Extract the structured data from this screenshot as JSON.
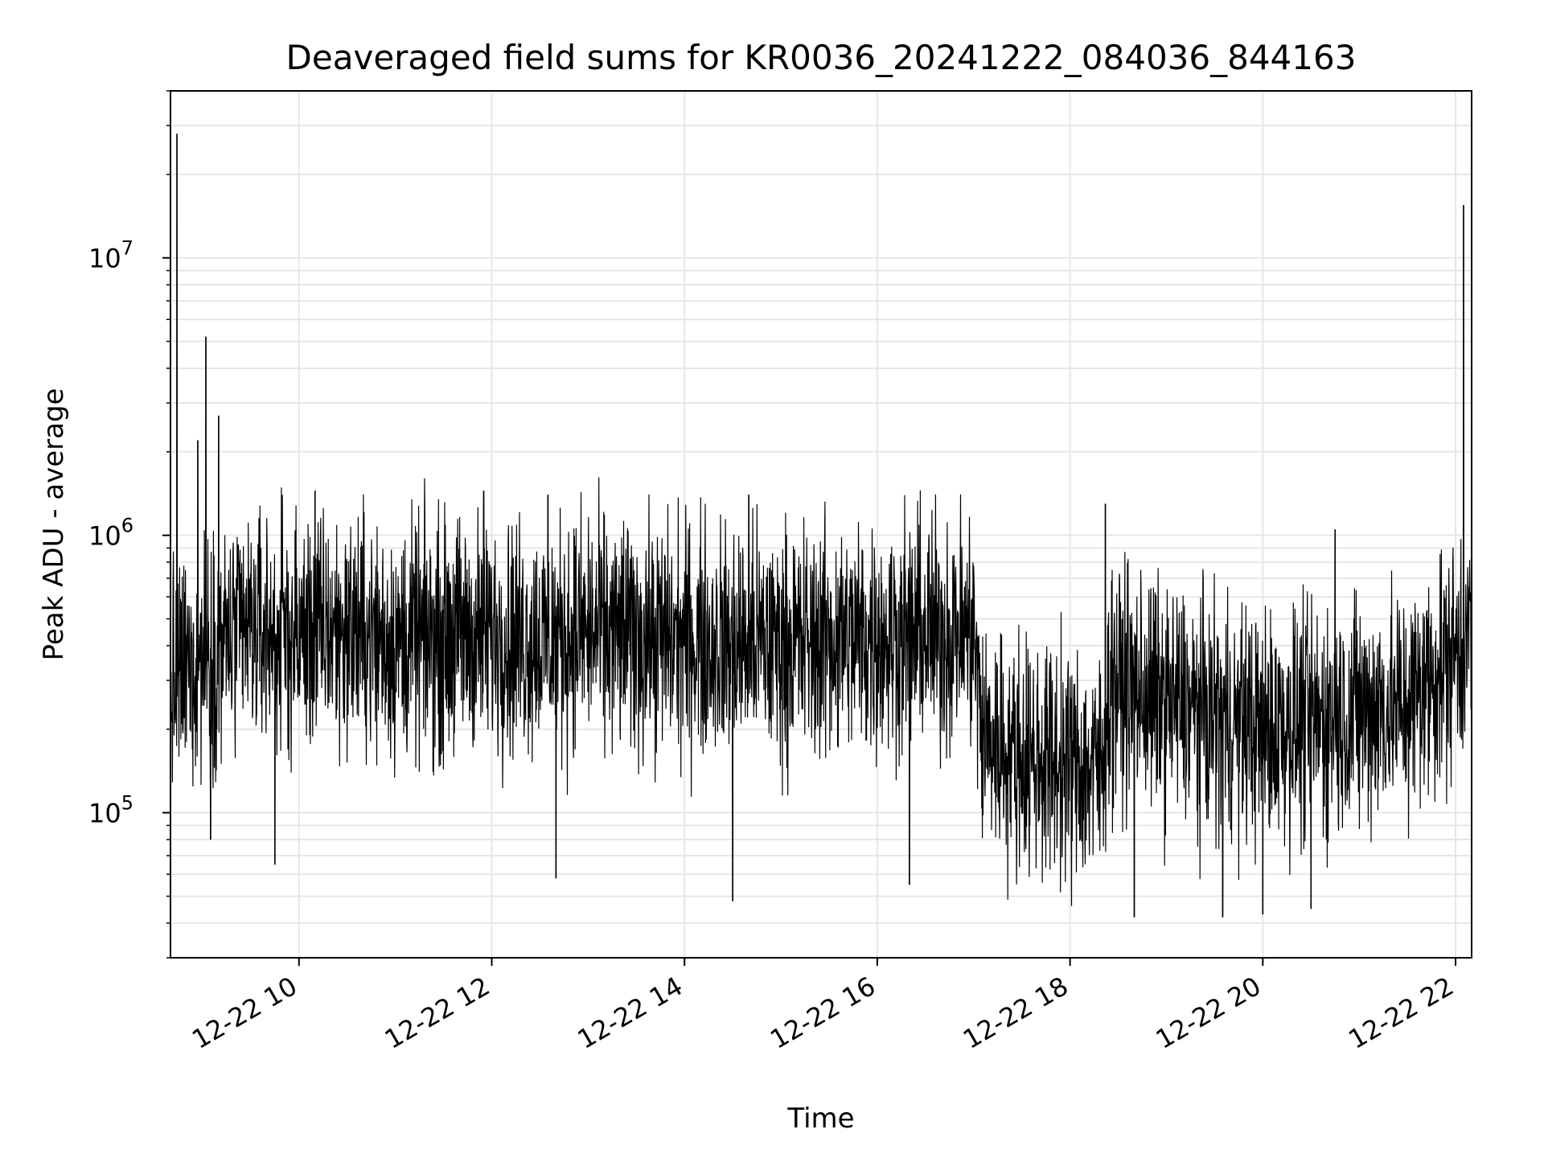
{
  "chart_data": {
    "type": "line",
    "title": "Deaveraged field sums for KR0036_20241222_084036_844163",
    "xlabel": "Time",
    "ylabel": "Peak ADU - average",
    "x_axis": {
      "kind": "datetime",
      "start": "2024-12-22T08:40",
      "end": "2024-12-22T22:10",
      "ticks": [
        "2024-12-22T10:00",
        "2024-12-22T12:00",
        "2024-12-22T14:00",
        "2024-12-22T16:00",
        "2024-12-22T18:00",
        "2024-12-22T20:00",
        "2024-12-22T22:00"
      ],
      "tick_labels": [
        "12-22 10",
        "12-22 12",
        "12-22 14",
        "12-22 16",
        "12-22 18",
        "12-22 20",
        "12-22 22"
      ],
      "tick_label_rotation": 30
    },
    "y_axis": {
      "scale": "log",
      "ylim": [
        30000,
        40000000
      ],
      "major_ticks": [
        100000,
        1000000,
        10000000
      ],
      "tick_labels": [
        {
          "base": "10",
          "exp": "5"
        },
        {
          "base": "10",
          "exp": "6"
        },
        {
          "base": "10",
          "exp": "7"
        }
      ]
    },
    "grid": true,
    "legend": "none",
    "line_color": "#000000",
    "grid_color": "#e6e6e6",
    "series": [
      {
        "x": [
          "2024-12-22T08:40",
          "2024-12-22T09:00",
          "2024-12-22T09:30",
          "2024-12-22T10:00",
          "2024-12-22T10:30",
          "2024-12-22T11:00",
          "2024-12-22T11:30",
          "2024-12-22T12:00",
          "2024-12-22T12:30",
          "2024-12-22T13:00",
          "2024-12-22T13:30",
          "2024-12-22T14:00",
          "2024-12-22T14:30",
          "2024-12-22T15:00",
          "2024-12-22T15:30",
          "2024-12-22T16:00",
          "2024-12-22T16:30",
          "2024-12-22T17:00",
          "2024-12-22T17:05",
          "2024-12-22T17:30",
          "2024-12-22T18:00",
          "2024-12-22T18:20",
          "2024-12-22T18:25",
          "2024-12-22T19:00",
          "2024-12-22T19:30",
          "2024-12-22T20:00",
          "2024-12-22T20:30",
          "2024-12-22T21:00",
          "2024-12-22T21:30",
          "2024-12-22T22:00",
          "2024-12-22T22:10"
        ],
        "values": [
          280000,
          380000,
          450000,
          430000,
          460000,
          410000,
          430000,
          440000,
          420000,
          450000,
          430000,
          420000,
          410000,
          400000,
          420000,
          430000,
          440000,
          450000,
          190000,
          160000,
          150000,
          140000,
          300000,
          250000,
          220000,
          200000,
          210000,
          230000,
          250000,
          380000,
          450000
        ]
      }
    ],
    "spikes": [
      {
        "x": "2024-12-22T08:44",
        "y": 28000000
      },
      {
        "x": "2024-12-22T09:02",
        "y": 5200000
      },
      {
        "x": "2024-12-22T09:10",
        "y": 2700000
      },
      {
        "x": "2024-12-22T08:57",
        "y": 2200000
      },
      {
        "x": "2024-12-22T10:10",
        "y": 1450000
      },
      {
        "x": "2024-12-22T11:55",
        "y": 1450000
      },
      {
        "x": "2024-12-22T12:35",
        "y": 1400000
      },
      {
        "x": "2024-12-22T14:40",
        "y": 1400000
      },
      {
        "x": "2024-12-22T18:22",
        "y": 1300000
      },
      {
        "x": "2024-12-22T20:45",
        "y": 1050000
      },
      {
        "x": "2024-12-22T22:05",
        "y": 15500000
      },
      {
        "x": "2024-12-22T09:05",
        "y": 80000
      },
      {
        "x": "2024-12-22T09:45",
        "y": 65000
      },
      {
        "x": "2024-12-22T12:40",
        "y": 58000
      },
      {
        "x": "2024-12-22T14:30",
        "y": 48000
      },
      {
        "x": "2024-12-22T16:20",
        "y": 55000
      },
      {
        "x": "2024-12-22T18:40",
        "y": 42000
      },
      {
        "x": "2024-12-22T19:35",
        "y": 42000
      },
      {
        "x": "2024-12-22T20:00",
        "y": 43000
      },
      {
        "x": "2024-12-22T20:30",
        "y": 45000
      }
    ]
  }
}
